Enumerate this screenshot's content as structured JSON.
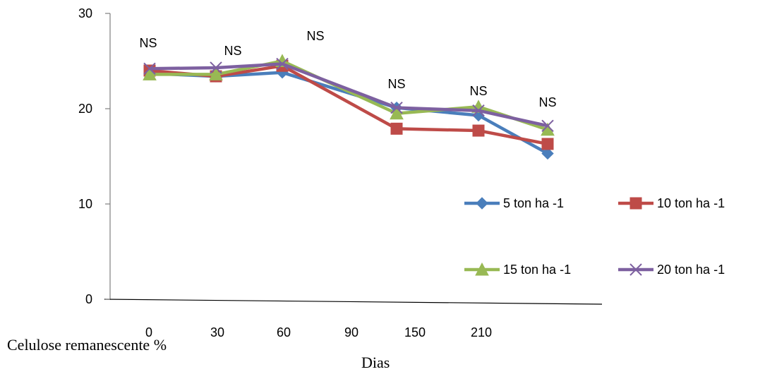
{
  "chart_data": {
    "type": "line",
    "categories": [
      "0",
      "30",
      "60",
      "90",
      "150",
      "210"
    ],
    "ylim": [
      0,
      30
    ],
    "yticks": [
      0,
      10,
      20,
      30
    ],
    "series": [
      {
        "name": "5 ton ha -1",
        "color": "#4A7EBB",
        "marker": "diamond",
        "values": [
          23.7,
          23.4,
          23.8,
          20.1,
          19.3,
          15.3
        ]
      },
      {
        "name": "10 ton ha -1",
        "color": "#BE4B48",
        "marker": "square",
        "values": [
          24.0,
          23.4,
          24.5,
          17.9,
          17.7,
          16.3
        ]
      },
      {
        "name": "15 ton ha -1",
        "color": "#98B954",
        "marker": "triangle",
        "values": [
          23.6,
          23.6,
          25.0,
          19.5,
          20.2,
          17.8
        ]
      },
      {
        "name": "20 ton ha -1",
        "color": "#7D60A0",
        "marker": "x",
        "values": [
          24.2,
          24.3,
          24.7,
          20.1,
          19.8,
          18.2
        ]
      }
    ],
    "annotations": [
      "NS",
      "NS",
      "NS",
      "NS",
      "NS",
      "NS"
    ],
    "xlabel": "Dias",
    "ylabel": "Celulose remanescente %",
    "legend_position": "right"
  }
}
